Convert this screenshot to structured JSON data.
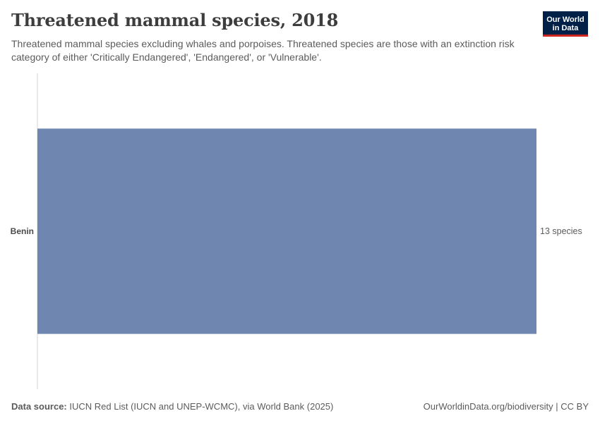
{
  "header": {
    "title": "Threatened mammal species, 2018",
    "subtitle": "Threatened mammal species excluding whales and porpoises. Threatened species are those with an extinction risk category of either 'Critically Endangered', 'Endangered', or 'Vulnerable'."
  },
  "logo": {
    "line1": "Our World",
    "line2": "in Data"
  },
  "chart_data": {
    "type": "bar",
    "orientation": "horizontal",
    "categories": [
      "Benin"
    ],
    "values": [
      13
    ],
    "value_labels": [
      "13 species"
    ],
    "bar_color": "#6f87b0",
    "xlim": [
      0,
      13
    ]
  },
  "footer": {
    "source_label": "Data source:",
    "source_text": "IUCN Red List (IUCN and UNEP-WCMC), via World Bank (2025)",
    "link_text": "OurWorldinData.org/biodiversity | CC BY"
  }
}
